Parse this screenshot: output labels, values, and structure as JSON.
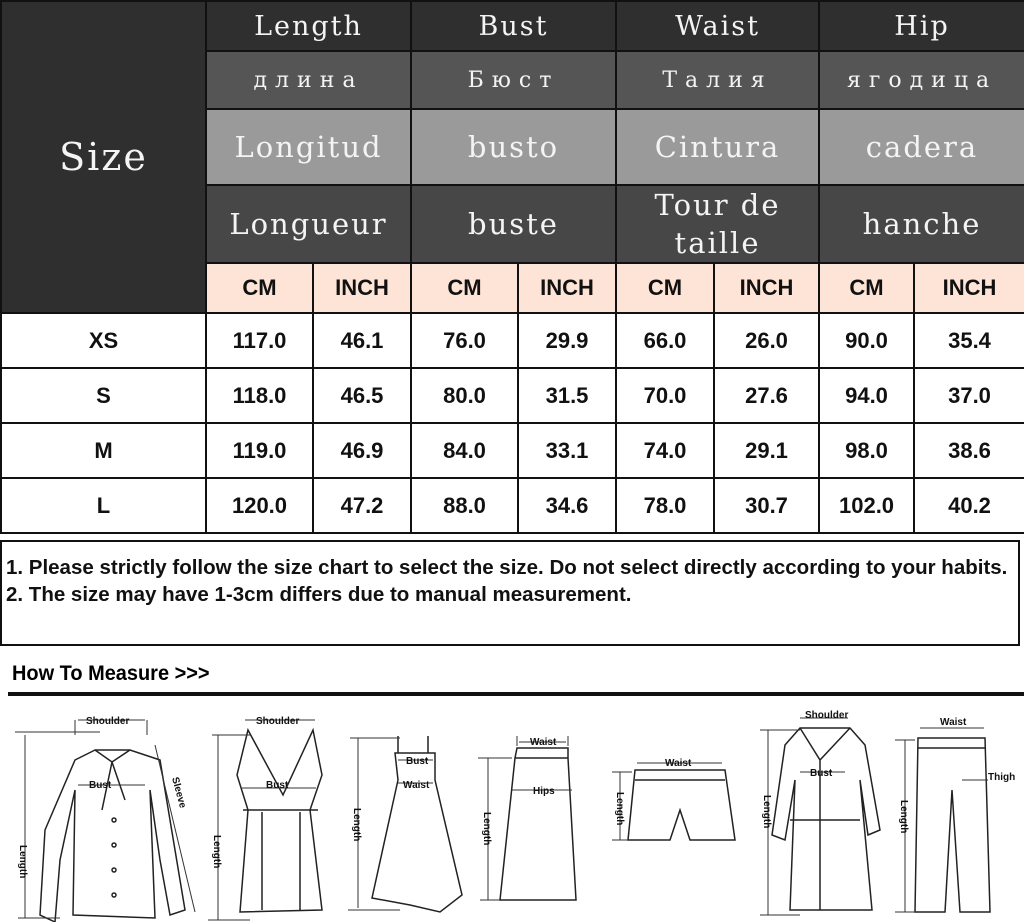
{
  "table": {
    "size_label": "Size",
    "columns": [
      {
        "en": "Length",
        "ru": "длина",
        "es": "Longitud",
        "fr": "Longueur"
      },
      {
        "en": "Bust",
        "ru": "Бюст",
        "es": "busto",
        "fr": "buste"
      },
      {
        "en": "Waist",
        "ru": "Талия",
        "es": "Cintura",
        "fr": "Tour de taille"
      },
      {
        "en": "Hip",
        "ru": "ягодица",
        "es": "cadera",
        "fr": "hanche"
      }
    ],
    "units": [
      "CM",
      "INCH",
      "CM",
      "INCH",
      "CM",
      "INCH",
      "CM",
      "INCH"
    ],
    "rows": [
      {
        "size": "XS",
        "values": [
          "117.0",
          "46.1",
          "76.0",
          "29.9",
          "66.0",
          "26.0",
          "90.0",
          "35.4"
        ]
      },
      {
        "size": "S",
        "values": [
          "118.0",
          "46.5",
          "80.0",
          "31.5",
          "70.0",
          "27.6",
          "94.0",
          "37.0"
        ]
      },
      {
        "size": "M",
        "values": [
          "119.0",
          "46.9",
          "84.0",
          "33.1",
          "74.0",
          "29.1",
          "98.0",
          "38.6"
        ]
      },
      {
        "size": "L",
        "values": [
          "120.0",
          "47.2",
          "88.0",
          "34.6",
          "78.0",
          "30.7",
          "102.0",
          "40.2"
        ]
      }
    ],
    "colors": {
      "dark": "#2f2f2f",
      "mid": "#555555",
      "light": "#9a9a9a",
      "unit_row": "#fde4d6"
    }
  },
  "notes": [
    "1. Please strictly follow the size chart to select the size. Do not select directly according to your habits.",
    "2. The size may have 1-3cm differs due to manual measurement."
  ],
  "how_to_measure": {
    "title": "How To Measure >>>",
    "garments": [
      {
        "type": "shirt-icon",
        "labels": {
          "a": "Shoulder",
          "b": "Bust",
          "c": "Length",
          "d": "Sleeve"
        }
      },
      {
        "type": "tank-top-icon",
        "labels": {
          "a": "Shoulder",
          "b": "Bust",
          "c": "Length"
        }
      },
      {
        "type": "dress-icon",
        "labels": {
          "a": "Bust",
          "b": "Waist",
          "c": "Length"
        }
      },
      {
        "type": "skirt-icon",
        "labels": {
          "a": "Waist",
          "b": "Hips",
          "c": "Length"
        }
      },
      {
        "type": "shorts-icon",
        "labels": {
          "a": "Waist",
          "c": "Length"
        }
      },
      {
        "type": "coat-icon",
        "labels": {
          "a": "Shoulder",
          "b": "Bust",
          "c": "Length"
        }
      },
      {
        "type": "pants-icon",
        "labels": {
          "a": "Waist",
          "b": "Thigh",
          "c": "Length"
        }
      }
    ]
  }
}
